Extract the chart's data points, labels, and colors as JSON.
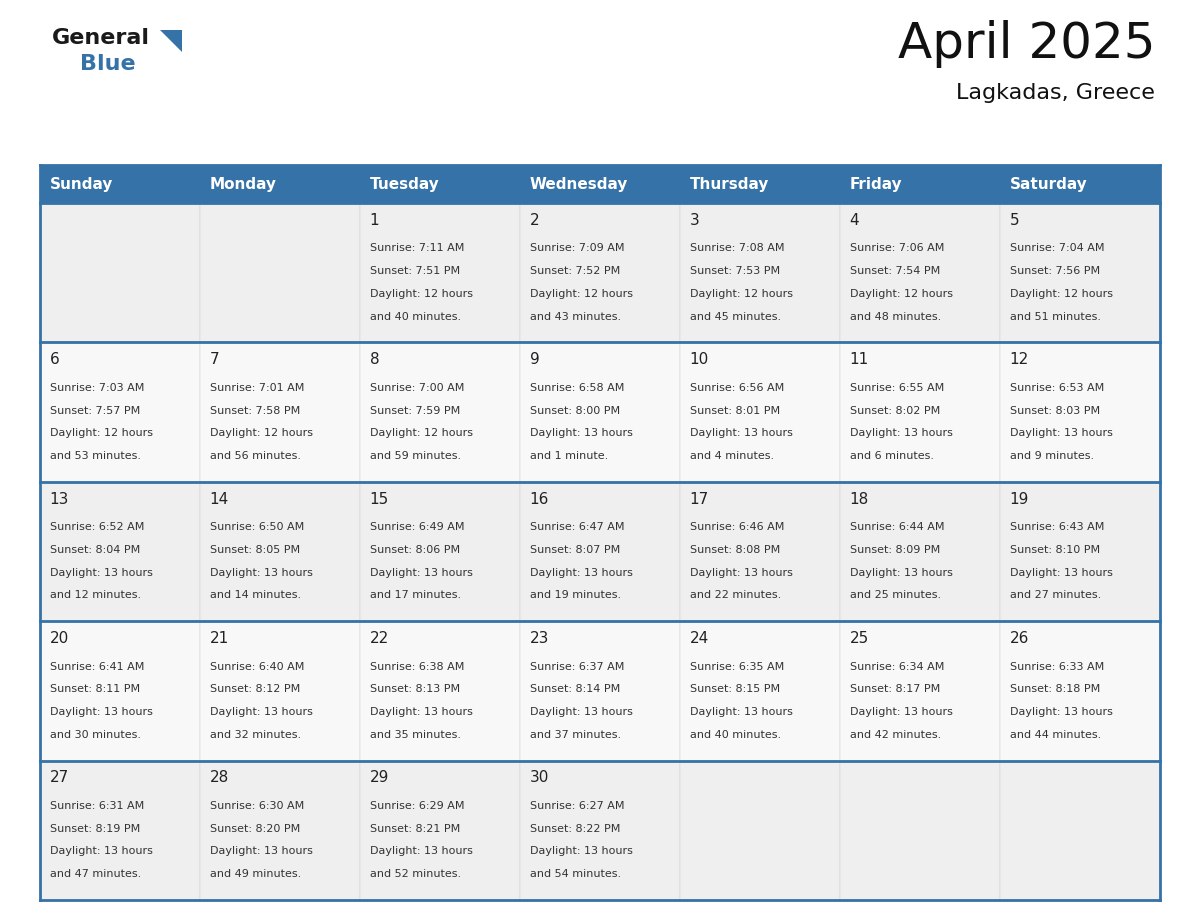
{
  "title": "April 2025",
  "subtitle": "Lagkadas, Greece",
  "header_color": "#3572a8",
  "header_text_color": "#ffffff",
  "border_color": "#3572a8",
  "cell_bg_even": "#efefef",
  "cell_bg_odd": "#f8f8f8",
  "text_color": "#333333",
  "day_names": [
    "Sunday",
    "Monday",
    "Tuesday",
    "Wednesday",
    "Thursday",
    "Friday",
    "Saturday"
  ],
  "title_fontsize": 36,
  "subtitle_fontsize": 16,
  "header_fontsize": 11,
  "day_num_fontsize": 11,
  "cell_text_fontsize": 8,
  "days": [
    {
      "day": 1,
      "col": 2,
      "row": 0,
      "sunrise": "7:11 AM",
      "sunset": "7:51 PM",
      "daylight_hours": 12,
      "daylight_minutes": 40
    },
    {
      "day": 2,
      "col": 3,
      "row": 0,
      "sunrise": "7:09 AM",
      "sunset": "7:52 PM",
      "daylight_hours": 12,
      "daylight_minutes": 43
    },
    {
      "day": 3,
      "col": 4,
      "row": 0,
      "sunrise": "7:08 AM",
      "sunset": "7:53 PM",
      "daylight_hours": 12,
      "daylight_minutes": 45
    },
    {
      "day": 4,
      "col": 5,
      "row": 0,
      "sunrise": "7:06 AM",
      "sunset": "7:54 PM",
      "daylight_hours": 12,
      "daylight_minutes": 48
    },
    {
      "day": 5,
      "col": 6,
      "row": 0,
      "sunrise": "7:04 AM",
      "sunset": "7:56 PM",
      "daylight_hours": 12,
      "daylight_minutes": 51
    },
    {
      "day": 6,
      "col": 0,
      "row": 1,
      "sunrise": "7:03 AM",
      "sunset": "7:57 PM",
      "daylight_hours": 12,
      "daylight_minutes": 53
    },
    {
      "day": 7,
      "col": 1,
      "row": 1,
      "sunrise": "7:01 AM",
      "sunset": "7:58 PM",
      "daylight_hours": 12,
      "daylight_minutes": 56
    },
    {
      "day": 8,
      "col": 2,
      "row": 1,
      "sunrise": "7:00 AM",
      "sunset": "7:59 PM",
      "daylight_hours": 12,
      "daylight_minutes": 59
    },
    {
      "day": 9,
      "col": 3,
      "row": 1,
      "sunrise": "6:58 AM",
      "sunset": "8:00 PM",
      "daylight_hours": 13,
      "daylight_minutes": 1
    },
    {
      "day": 10,
      "col": 4,
      "row": 1,
      "sunrise": "6:56 AM",
      "sunset": "8:01 PM",
      "daylight_hours": 13,
      "daylight_minutes": 4
    },
    {
      "day": 11,
      "col": 5,
      "row": 1,
      "sunrise": "6:55 AM",
      "sunset": "8:02 PM",
      "daylight_hours": 13,
      "daylight_minutes": 6
    },
    {
      "day": 12,
      "col": 6,
      "row": 1,
      "sunrise": "6:53 AM",
      "sunset": "8:03 PM",
      "daylight_hours": 13,
      "daylight_minutes": 9
    },
    {
      "day": 13,
      "col": 0,
      "row": 2,
      "sunrise": "6:52 AM",
      "sunset": "8:04 PM",
      "daylight_hours": 13,
      "daylight_minutes": 12
    },
    {
      "day": 14,
      "col": 1,
      "row": 2,
      "sunrise": "6:50 AM",
      "sunset": "8:05 PM",
      "daylight_hours": 13,
      "daylight_minutes": 14
    },
    {
      "day": 15,
      "col": 2,
      "row": 2,
      "sunrise": "6:49 AM",
      "sunset": "8:06 PM",
      "daylight_hours": 13,
      "daylight_minutes": 17
    },
    {
      "day": 16,
      "col": 3,
      "row": 2,
      "sunrise": "6:47 AM",
      "sunset": "8:07 PM",
      "daylight_hours": 13,
      "daylight_minutes": 19
    },
    {
      "day": 17,
      "col": 4,
      "row": 2,
      "sunrise": "6:46 AM",
      "sunset": "8:08 PM",
      "daylight_hours": 13,
      "daylight_minutes": 22
    },
    {
      "day": 18,
      "col": 5,
      "row": 2,
      "sunrise": "6:44 AM",
      "sunset": "8:09 PM",
      "daylight_hours": 13,
      "daylight_minutes": 25
    },
    {
      "day": 19,
      "col": 6,
      "row": 2,
      "sunrise": "6:43 AM",
      "sunset": "8:10 PM",
      "daylight_hours": 13,
      "daylight_minutes": 27
    },
    {
      "day": 20,
      "col": 0,
      "row": 3,
      "sunrise": "6:41 AM",
      "sunset": "8:11 PM",
      "daylight_hours": 13,
      "daylight_minutes": 30
    },
    {
      "day": 21,
      "col": 1,
      "row": 3,
      "sunrise": "6:40 AM",
      "sunset": "8:12 PM",
      "daylight_hours": 13,
      "daylight_minutes": 32
    },
    {
      "day": 22,
      "col": 2,
      "row": 3,
      "sunrise": "6:38 AM",
      "sunset": "8:13 PM",
      "daylight_hours": 13,
      "daylight_minutes": 35
    },
    {
      "day": 23,
      "col": 3,
      "row": 3,
      "sunrise": "6:37 AM",
      "sunset": "8:14 PM",
      "daylight_hours": 13,
      "daylight_minutes": 37
    },
    {
      "day": 24,
      "col": 4,
      "row": 3,
      "sunrise": "6:35 AM",
      "sunset": "8:15 PM",
      "daylight_hours": 13,
      "daylight_minutes": 40
    },
    {
      "day": 25,
      "col": 5,
      "row": 3,
      "sunrise": "6:34 AM",
      "sunset": "8:17 PM",
      "daylight_hours": 13,
      "daylight_minutes": 42
    },
    {
      "day": 26,
      "col": 6,
      "row": 3,
      "sunrise": "6:33 AM",
      "sunset": "8:18 PM",
      "daylight_hours": 13,
      "daylight_minutes": 44
    },
    {
      "day": 27,
      "col": 0,
      "row": 4,
      "sunrise": "6:31 AM",
      "sunset": "8:19 PM",
      "daylight_hours": 13,
      "daylight_minutes": 47
    },
    {
      "day": 28,
      "col": 1,
      "row": 4,
      "sunrise": "6:30 AM",
      "sunset": "8:20 PM",
      "daylight_hours": 13,
      "daylight_minutes": 49
    },
    {
      "day": 29,
      "col": 2,
      "row": 4,
      "sunrise": "6:29 AM",
      "sunset": "8:21 PM",
      "daylight_hours": 13,
      "daylight_minutes": 52
    },
    {
      "day": 30,
      "col": 3,
      "row": 4,
      "sunrise": "6:27 AM",
      "sunset": "8:22 PM",
      "daylight_hours": 13,
      "daylight_minutes": 54
    }
  ]
}
